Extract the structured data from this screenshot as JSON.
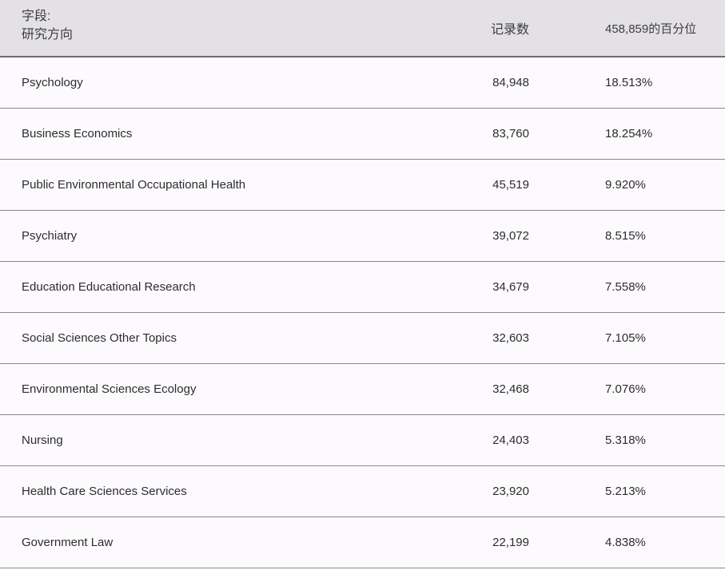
{
  "header": {
    "field_label": "字段:",
    "field_value": "研究方向",
    "records_column_label": "记录数",
    "percentile_column_label": "458,859的百分位"
  },
  "total_records": "458,859",
  "rows": [
    {
      "name": "Psychology",
      "records": "84,948",
      "percent": "18.513%"
    },
    {
      "name": "Business Economics",
      "records": "83,760",
      "percent": "18.254%"
    },
    {
      "name": "Public Environmental Occupational Health",
      "records": "45,519",
      "percent": "9.920%"
    },
    {
      "name": "Psychiatry",
      "records": "39,072",
      "percent": "8.515%"
    },
    {
      "name": "Education Educational Research",
      "records": "34,679",
      "percent": "7.558%"
    },
    {
      "name": "Social Sciences Other Topics",
      "records": "32,603",
      "percent": "7.105%"
    },
    {
      "name": "Environmental Sciences Ecology",
      "records": "32,468",
      "percent": "7.076%"
    },
    {
      "name": "Nursing",
      "records": "24,403",
      "percent": "5.318%"
    },
    {
      "name": "Health Care Sciences Services",
      "records": "23,920",
      "percent": "5.213%"
    },
    {
      "name": "Government Law",
      "records": "22,199",
      "percent": "4.838%"
    }
  ],
  "colors": {
    "header_bg": "#e3e1e6",
    "header_border": "#716c74",
    "row_bg": "#fdfafe",
    "row_border": "#8b8690",
    "text": "#2d2d2d",
    "header_text": "#3d3d3d"
  }
}
